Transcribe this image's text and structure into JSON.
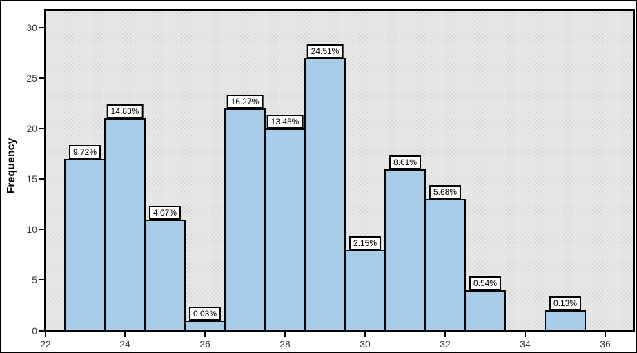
{
  "chart_data": {
    "type": "bar",
    "subtype": "histogram",
    "title": "",
    "xlabel": "",
    "ylabel": "Frequency",
    "x_ticks": [
      22,
      24,
      26,
      28,
      30,
      32,
      34,
      36
    ],
    "y_ticks": [
      0,
      5,
      10,
      15,
      20,
      25,
      30
    ],
    "xlim": [
      22,
      36.7
    ],
    "ylim": [
      0,
      31.6
    ],
    "bin_width": 1,
    "grid": false,
    "legend": false,
    "bars": [
      {
        "bin_start": 22.5,
        "bin_end": 23.5,
        "frequency": 17,
        "label": "9.72%"
      },
      {
        "bin_start": 23.5,
        "bin_end": 24.5,
        "frequency": 21,
        "label": "14.83%"
      },
      {
        "bin_start": 24.5,
        "bin_end": 25.5,
        "frequency": 11,
        "label": "4.07%"
      },
      {
        "bin_start": 25.5,
        "bin_end": 26.5,
        "frequency": 1,
        "label": "0.03%"
      },
      {
        "bin_start": 26.5,
        "bin_end": 27.5,
        "frequency": 22,
        "label": "16.27%"
      },
      {
        "bin_start": 27.5,
        "bin_end": 28.5,
        "frequency": 20,
        "label": "13.45%"
      },
      {
        "bin_start": 28.5,
        "bin_end": 29.5,
        "frequency": 27,
        "label": "24.51%"
      },
      {
        "bin_start": 29.5,
        "bin_end": 30.5,
        "frequency": 8,
        "label": "2.15%"
      },
      {
        "bin_start": 30.5,
        "bin_end": 31.5,
        "frequency": 16,
        "label": "8.61%"
      },
      {
        "bin_start": 31.5,
        "bin_end": 32.5,
        "frequency": 13,
        "label": "5.68%"
      },
      {
        "bin_start": 32.5,
        "bin_end": 33.5,
        "frequency": 4,
        "label": "0.54%"
      },
      {
        "bin_start": 34.5,
        "bin_end": 35.5,
        "frequency": 2,
        "label": "0.13%"
      }
    ],
    "colors": {
      "bar_fill": "#a9cde8",
      "bar_border": "#000000",
      "plot_background": "#e7e7e5",
      "label_box_background": "#ffffff",
      "label_box_border": "#000000",
      "tick_label": "#3a3a3a",
      "axis": "#000000"
    }
  }
}
